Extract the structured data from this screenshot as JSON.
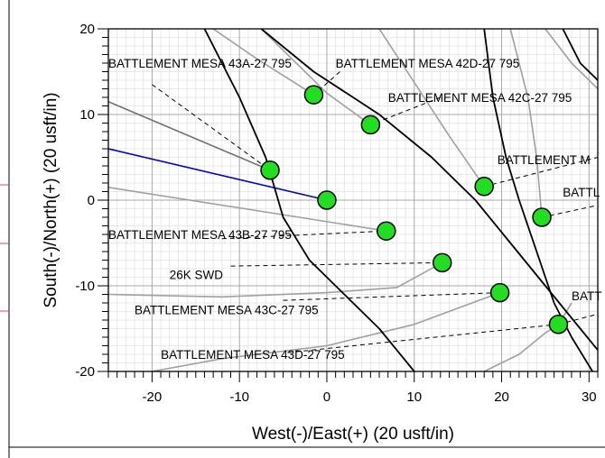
{
  "chart_data": {
    "type": "line",
    "title": "",
    "xlabel": "West(-)/East(+) (20 usft/in)",
    "ylabel": "South(-)/North(+) (20 usft/in)",
    "xlim": [
      -25,
      31
    ],
    "ylim": [
      -20,
      20
    ],
    "x_ticks": [
      -20,
      -10,
      0,
      10,
      20,
      30
    ],
    "y_ticks": [
      -20,
      -10,
      0,
      10,
      20
    ],
    "x_tick_labels": [
      "-20",
      "-10",
      "0",
      "10",
      "20",
      "30"
    ],
    "y_tick_labels": [
      "-20",
      "-10",
      "0",
      "10",
      "20"
    ],
    "grid": true,
    "colors": {
      "well_fill": "#22dd22",
      "blue_path": "#0000cc",
      "gray_path": "#a0a0a0",
      "black_path": "#000000"
    },
    "wells": [
      {
        "name": "BATTLEMENT MESA 43A-27 795",
        "x": -6.5,
        "y": 3.5
      },
      {
        "name": "BATTLEMENT MESA 42D-27 795",
        "x": -1.5,
        "y": 12.3
      },
      {
        "name": "BATTLEMENT MESA 42C-27 795",
        "x": 5.0,
        "y": 8.8
      },
      {
        "name": "BATTLEMENT MESA 43B-27 795",
        "x": 6.8,
        "y": -3.6
      },
      {
        "name": "26K SWD",
        "x": 13.2,
        "y": -7.3
      },
      {
        "name": "BATTLEMENT MESA 43C-27 795",
        "x": 19.8,
        "y": -10.8
      },
      {
        "name": "BATTLEMENT MESA 43D-27 795",
        "x": 26.5,
        "y": -14.5
      },
      {
        "name": "",
        "x": 0.0,
        "y": 0.0
      },
      {
        "name": "",
        "x": 18.0,
        "y": 1.6
      },
      {
        "name": "",
        "x": 24.6,
        "y": -2.0
      }
    ],
    "labels": [
      {
        "text": "BATTLEMENT MESA 43A-27 795",
        "x": -25.0,
        "y": 15.5
      },
      {
        "text": "BATTLEMENT MESA 42D-27 795",
        "x": 1.0,
        "y": 15.5
      },
      {
        "text": "BATTLEMENT MESA 42C-27 795",
        "x": 7.0,
        "y": 11.5
      },
      {
        "text": "BATTLEMENT MESA 43B-27 795",
        "x": -25.0,
        "y": -4.5
      },
      {
        "text": "26K SWD",
        "x": -18.0,
        "y": -9.2
      },
      {
        "text": "BATTLEMENT MESA 43C-27 795",
        "x": -22.0,
        "y": -13.3
      },
      {
        "text": "BATTLEMENT MESA 43D-27 795",
        "x": -19.0,
        "y": -18.5
      },
      {
        "text": "BATTLEMENT M",
        "x": 19.5,
        "y": 4.2
      },
      {
        "text": "BATTL",
        "x": 27.0,
        "y": 0.4
      },
      {
        "text": "BATT",
        "x": 28.0,
        "y": -11.7
      }
    ],
    "label_leaders": [
      {
        "from": [
          -20.0,
          13.5
        ],
        "to": [
          -6.5,
          3.5
        ]
      },
      {
        "from": [
          1.5,
          15.0
        ],
        "to": [
          -1.5,
          12.3
        ]
      },
      {
        "from": [
          13.0,
          12.0
        ],
        "to": [
          5.0,
          8.8
        ]
      },
      {
        "from": [
          -11.0,
          -7.7
        ],
        "to": [
          13.2,
          -7.3
        ]
      },
      {
        "from": [
          -5.0,
          -11.7
        ],
        "to": [
          19.8,
          -10.8
        ]
      },
      {
        "from": [
          -4.5,
          -17.8
        ],
        "to": [
          26.5,
          -14.5
        ]
      },
      {
        "from": [
          -12.0,
          -4.5
        ],
        "to": [
          6.8,
          -3.6
        ]
      },
      {
        "from": [
          18.0,
          1.6
        ],
        "to": [
          31.0,
          5.0
        ]
      },
      {
        "from": [
          24.6,
          -2.0
        ],
        "to": [
          31.0,
          -0.6
        ]
      },
      {
        "from": [
          26.5,
          -14.5
        ],
        "to": [
          31.0,
          -13.3
        ]
      }
    ],
    "series": [
      {
        "style": "blue",
        "points": [
          [
            -25,
            6.0
          ],
          [
            0,
            0
          ]
        ]
      },
      {
        "style": "dark",
        "points": [
          [
            -25,
            11.5
          ],
          [
            -6.5,
            3.5
          ]
        ]
      },
      {
        "style": "gray",
        "points": [
          [
            -25,
            1.5
          ],
          [
            6.8,
            -3.6
          ]
        ]
      },
      {
        "style": "gray",
        "points": [
          [
            -25,
            -11.0
          ],
          [
            -12,
            -11.3
          ],
          [
            0,
            -10.8
          ],
          [
            8,
            -10.2
          ],
          [
            13.2,
            -7.3
          ]
        ]
      },
      {
        "style": "gray",
        "points": [
          [
            -20,
            -20
          ],
          [
            -12,
            -18.5
          ],
          [
            0,
            -17
          ],
          [
            10,
            -14.5
          ],
          [
            19.8,
            -10.8
          ]
        ]
      },
      {
        "style": "gray",
        "points": [
          [
            -13,
            20
          ],
          [
            -8,
            16.5
          ],
          [
            -1.5,
            12.3
          ]
        ]
      },
      {
        "style": "gray",
        "points": [
          [
            -7.5,
            20
          ],
          [
            0,
            12.5
          ],
          [
            5.0,
            8.8
          ]
        ]
      },
      {
        "style": "gray",
        "points": [
          [
            6,
            20
          ],
          [
            14,
            7.5
          ],
          [
            18.0,
            1.6
          ]
        ]
      },
      {
        "style": "gray",
        "points": [
          [
            21,
            20
          ],
          [
            23,
            12
          ],
          [
            24,
            5
          ],
          [
            24.6,
            -2.0
          ]
        ]
      },
      {
        "style": "gray",
        "points": [
          [
            18,
            -20
          ],
          [
            22,
            -18
          ],
          [
            25,
            -15.5
          ],
          [
            26.5,
            -14.5
          ],
          [
            28,
            -12
          ]
        ]
      },
      {
        "style": "gray",
        "points": [
          [
            25,
            20
          ],
          [
            28,
            16
          ],
          [
            31,
            13
          ]
        ]
      },
      {
        "style": "black",
        "points": [
          [
            -14,
            20
          ],
          [
            -10,
            12
          ],
          [
            -7,
            5
          ],
          [
            -5,
            -2
          ],
          [
            -2,
            -7
          ],
          [
            2,
            -11
          ],
          [
            6,
            -15
          ],
          [
            10,
            -20
          ]
        ]
      },
      {
        "style": "black",
        "points": [
          [
            -7.5,
            20
          ],
          [
            -1.5,
            15
          ],
          [
            6,
            10
          ],
          [
            12,
            5
          ],
          [
            17,
            0
          ],
          [
            21,
            -5
          ],
          [
            25,
            -10
          ],
          [
            29,
            -15
          ],
          [
            31,
            -17.5
          ]
        ]
      },
      {
        "style": "black",
        "points": [
          [
            18,
            20
          ],
          [
            19,
            12
          ],
          [
            20.5,
            5
          ],
          [
            22,
            0
          ],
          [
            24,
            -6
          ],
          [
            26,
            -12
          ],
          [
            28,
            -16
          ],
          [
            31,
            -21
          ]
        ]
      },
      {
        "style": "black",
        "points": [
          [
            27,
            20
          ],
          [
            29,
            16
          ],
          [
            31,
            14
          ]
        ]
      }
    ]
  }
}
